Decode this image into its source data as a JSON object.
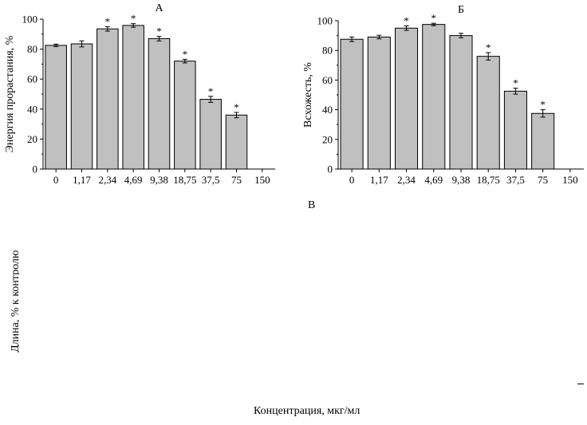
{
  "chart_data": [
    {
      "type": "bar",
      "panel_label": "А",
      "ylabel": "Энергия прорастания, %",
      "categories": [
        "0",
        "1,17",
        "2,34",
        "4,69",
        "9,38",
        "18,75",
        "37,5",
        "75",
        "150"
      ],
      "values": [
        82.5,
        83.5,
        93.5,
        95.8,
        87.0,
        72.0,
        46.5,
        36.0,
        0
      ],
      "errors": [
        0.8,
        2.0,
        1.5,
        1.2,
        1.5,
        1.2,
        2.0,
        1.8,
        0
      ],
      "significant": [
        false,
        false,
        true,
        true,
        true,
        true,
        true,
        true,
        false
      ],
      "marker": "*",
      "ylim": [
        0,
        100
      ],
      "yticks": [
        0,
        20,
        40,
        60,
        80,
        100
      ],
      "bar_color": "#c0c0c0"
    },
    {
      "type": "bar",
      "panel_label": "Б",
      "ylabel": "Всхожесть, %",
      "categories": [
        "0",
        "1,17",
        "2,34",
        "4,69",
        "9,38",
        "18,75",
        "37,5",
        "75",
        "150"
      ],
      "values": [
        87.5,
        89.0,
        95.0,
        97.5,
        90.0,
        76.0,
        52.5,
        37.5,
        0
      ],
      "errors": [
        1.5,
        1.2,
        1.5,
        0.8,
        1.5,
        2.5,
        2.0,
        2.5,
        0
      ],
      "significant": [
        false,
        false,
        true,
        true,
        false,
        true,
        true,
        true,
        false
      ],
      "marker": "*",
      "ylim": [
        0,
        100
      ],
      "yticks": [
        0,
        20,
        40,
        60,
        80,
        100
      ],
      "bar_color": "#c0c0c0"
    }
  ],
  "panel_c": {
    "label": "В",
    "ylabel": "Длина, % к контролю",
    "xlabel": "Концентрация, мкг/мл"
  }
}
